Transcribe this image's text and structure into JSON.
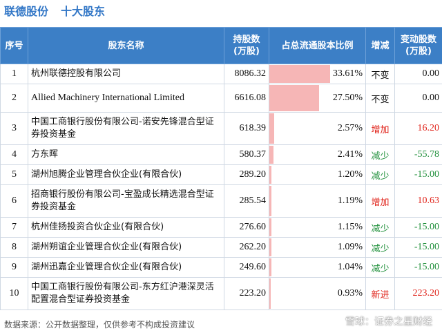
{
  "header": {
    "company": "联德股份",
    "subtitle": "十大股东"
  },
  "table": {
    "columns": [
      "序号",
      "股东名称",
      "持股数\n(万股)",
      "占总流通股本比例",
      "增减",
      "变动股数\n(万股)"
    ],
    "rows": [
      {
        "idx": "1",
        "name": "杭州联德控股有限公司",
        "shares": "8086.32",
        "ratio": "33.61%",
        "ratio_value": 33.61,
        "change": "不变",
        "change_type": "flat",
        "delta": "0.00",
        "delta_type": "flat"
      },
      {
        "idx": "2",
        "name": "Allied Machinery International Limited",
        "shares": "6616.08",
        "ratio": "27.50%",
        "ratio_value": 27.5,
        "change": "不变",
        "change_type": "flat",
        "delta": "0.00",
        "delta_type": "flat"
      },
      {
        "idx": "3",
        "name": "中国工商银行股份有限公司-诺安先锋混合型证券投资基金",
        "shares": "618.39",
        "ratio": "2.57%",
        "ratio_value": 2.57,
        "change": "增加",
        "change_type": "up",
        "delta": "16.20",
        "delta_type": "up"
      },
      {
        "idx": "4",
        "name": "方东晖",
        "shares": "580.37",
        "ratio": "2.41%",
        "ratio_value": 2.41,
        "change": "减少",
        "change_type": "down",
        "delta": "-55.78",
        "delta_type": "down"
      },
      {
        "idx": "5",
        "name": "湖州旭腾企业管理合伙企业(有限合伙)",
        "shares": "289.20",
        "ratio": "1.20%",
        "ratio_value": 1.2,
        "change": "减少",
        "change_type": "down",
        "delta": "-15.00",
        "delta_type": "down"
      },
      {
        "idx": "6",
        "name": "招商银行股份有限公司-宝盈成长精选混合型证券投资基金",
        "shares": "285.54",
        "ratio": "1.19%",
        "ratio_value": 1.19,
        "change": "增加",
        "change_type": "up",
        "delta": "10.63",
        "delta_type": "up"
      },
      {
        "idx": "7",
        "name": "杭州佳扬投资合伙企业(有限合伙)",
        "shares": "276.60",
        "ratio": "1.15%",
        "ratio_value": 1.15,
        "change": "减少",
        "change_type": "down",
        "delta": "-15.00",
        "delta_type": "down"
      },
      {
        "idx": "8",
        "name": "湖州朔谊企业管理合伙企业(有限合伙)",
        "shares": "262.20",
        "ratio": "1.09%",
        "ratio_value": 1.09,
        "change": "减少",
        "change_type": "down",
        "delta": "-15.00",
        "delta_type": "down"
      },
      {
        "idx": "9",
        "name": "湖州迅嘉企业管理合伙企业(有限合伙)",
        "shares": "249.60",
        "ratio": "1.04%",
        "ratio_value": 1.04,
        "change": "减少",
        "change_type": "down",
        "delta": "-15.00",
        "delta_type": "down"
      },
      {
        "idx": "10",
        "name": "中国工商银行股份有限公司-东方红沪港深灵活配置混合型证券投资基金",
        "shares": "223.20",
        "ratio": "0.93%",
        "ratio_value": 0.93,
        "change": "新进",
        "change_type": "up",
        "delta": "223.20",
        "delta_type": "up"
      }
    ]
  },
  "footer": {
    "source": "数据来源：公开数据整理，仅供参考不构成投资建议",
    "brand": "雪球：证券之星财经"
  },
  "colors": {
    "header_bg": "#3c7fc6",
    "title": "#3478c7",
    "bar": "#f6b6b6",
    "up": "#e0241b",
    "down": "#1f8f3a"
  }
}
